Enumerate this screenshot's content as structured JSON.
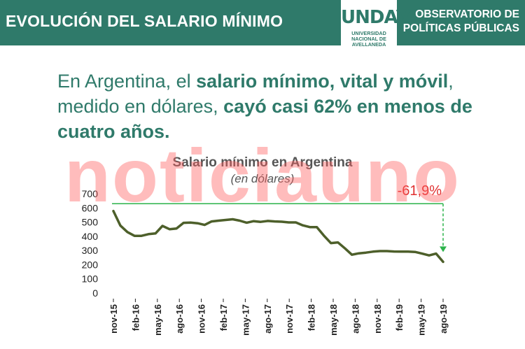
{
  "header": {
    "title": "EVOLUCIÓN DEL SALARIO MÍNIMO",
    "logo_main": "UNDAV",
    "logo_sub": [
      "UNIVERSIDAD",
      "NACIONAL DE",
      "AVELLANEDA"
    ],
    "observatorio": [
      "OBSERVATORIO DE",
      "POLÍTICAS PÚBLICAS"
    ]
  },
  "headline": {
    "p1": "En Argentina, el ",
    "b1": "salario mínimo, vital y móvil",
    "p2": ", medido en dólares, ",
    "b2": "cayó casi 62% en menos de cuatro años."
  },
  "watermark": "noticiauno",
  "colors": {
    "brand": "#2f7a6a",
    "line": "#4d5f2a",
    "reference": "#2bb34a",
    "annotation": "#e03030",
    "watermark": "#ff5f5f"
  },
  "chart_data": {
    "type": "line",
    "title": "Salario mínimo en Argentina",
    "subtitle": "(en dólares)",
    "ylim": [
      0,
      700
    ],
    "yticks": [
      0,
      100,
      200,
      300,
      400,
      500,
      600,
      700
    ],
    "xtick_labels": [
      "nov-15",
      "feb-16",
      "may-16",
      "ago-16",
      "nov-16",
      "feb-17",
      "may-17",
      "ago-17",
      "nov-17",
      "feb-18",
      "may-18",
      "ago-18",
      "nov-18",
      "feb-19",
      "may-19",
      "ago-19"
    ],
    "grid": false,
    "values": [
      578,
      475,
      430,
      403,
      403,
      415,
      420,
      473,
      450,
      455,
      495,
      497,
      492,
      480,
      505,
      510,
      515,
      520,
      510,
      496,
      507,
      502,
      508,
      505,
      503,
      498,
      498,
      477,
      465,
      465,
      405,
      352,
      357,
      315,
      270,
      280,
      285,
      292,
      296,
      296,
      293,
      292,
      292,
      290,
      278,
      265,
      278,
      220
    ],
    "annotation": {
      "text": "-61,9%",
      "reference_value": 630
    }
  }
}
